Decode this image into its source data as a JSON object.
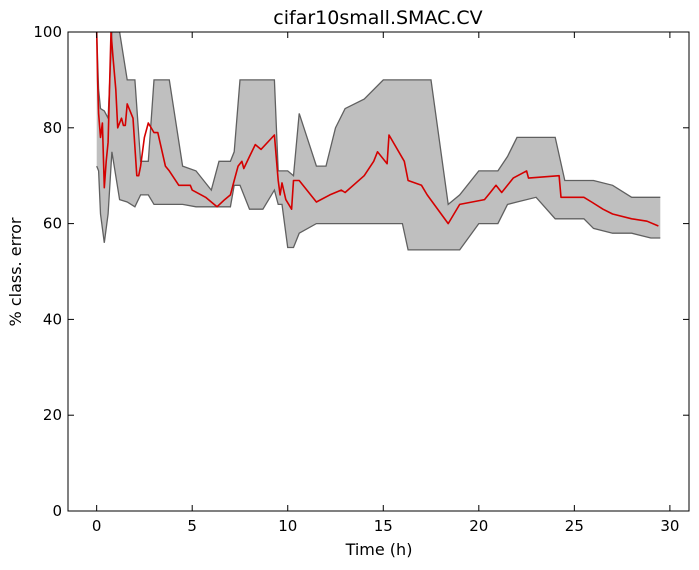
{
  "chart_data": {
    "type": "line",
    "title": "cifar10small.SMAC.CV",
    "xlabel": "Time (h)",
    "ylabel": "% class. error",
    "xlim": [
      -1.5,
      31
    ],
    "ylim": [
      0,
      100
    ],
    "x_ticks": [
      0,
      5,
      10,
      15,
      20,
      25,
      30
    ],
    "y_ticks": [
      0,
      20,
      40,
      60,
      80,
      100
    ],
    "grid": false,
    "colors": {
      "line": "#d40000",
      "band_fill": "#bfbfbf",
      "band_edge": "#606060"
    },
    "series": [
      {
        "x": [
          0.0,
          0.05,
          0.1,
          0.2,
          0.3,
          0.4,
          0.5,
          0.6,
          0.75,
          0.85,
          1.0,
          1.1,
          1.3,
          1.4,
          1.5,
          1.6,
          1.9,
          2.1,
          2.2,
          2.3,
          2.5,
          2.7,
          3.0,
          3.2,
          3.6,
          3.8,
          4.3,
          4.9,
          5.0,
          5.7,
          6.3,
          6.7,
          7.0,
          7.2,
          7.4,
          7.6,
          7.7,
          8.0,
          8.3,
          8.6,
          9.3,
          9.5,
          9.6,
          9.7,
          9.9,
          10.2,
          10.3,
          10.6,
          11.5,
          12.2,
          12.8,
          13.0,
          14.0,
          14.5,
          14.7,
          15.2,
          15.3,
          16.1,
          16.3,
          17.0,
          17.3,
          18.4,
          19.0,
          20.3,
          20.6,
          20.9,
          21.2,
          21.8,
          22.5,
          22.6,
          24.2,
          24.3,
          25.5,
          25.9,
          26.5,
          27.0,
          28.0,
          28.8,
          29.4
        ],
        "values": [
          100.0,
          90.0,
          83.0,
          78.0,
          81.0,
          67.5,
          73.0,
          77.0,
          100.0,
          95.0,
          88.0,
          80.0,
          82.0,
          80.5,
          80.5,
          85.0,
          82.0,
          70.0,
          70.0,
          72.0,
          78.0,
          81.0,
          79.0,
          79.0,
          72.0,
          71.0,
          68.0,
          68.0,
          67.0,
          65.5,
          63.5,
          65.0,
          66.0,
          69.0,
          72.0,
          73.0,
          71.5,
          74.0,
          76.5,
          75.5,
          78.5,
          69.0,
          66.0,
          68.5,
          65.0,
          63.0,
          69.0,
          69.0,
          64.5,
          66.0,
          67.0,
          66.5,
          70.0,
          73.0,
          75.0,
          72.5,
          78.5,
          73.0,
          69.0,
          68.0,
          66.0,
          60.0,
          64.0,
          65.0,
          66.5,
          68.0,
          66.5,
          69.5,
          71.0,
          69.5,
          70.0,
          65.5,
          65.5,
          64.5,
          63.0,
          62.0,
          61.0,
          60.5,
          59.5
        ]
      }
    ],
    "band": {
      "x": [
        0.0,
        0.1,
        0.2,
        0.4,
        0.6,
        0.8,
        1.2,
        1.6,
        2.0,
        2.3,
        2.7,
        3.0,
        3.8,
        4.5,
        5.2,
        6.0,
        6.4,
        7.0,
        7.2,
        7.5,
        8.0,
        8.7,
        9.3,
        9.5,
        9.7,
        10.0,
        10.3,
        10.6,
        11.5,
        12.0,
        12.5,
        13.0,
        14.0,
        15.0,
        16.0,
        16.3,
        17.5,
        18.4,
        19.0,
        20.0,
        20.5,
        21.0,
        21.5,
        22.0,
        23.0,
        24.0,
        24.5,
        25.5,
        26.0,
        27.0,
        28.0,
        29.0,
        29.5
      ],
      "upper": [
        100.0,
        88.0,
        84.0,
        83.5,
        82.0,
        100.0,
        100.0,
        90.0,
        90.0,
        73.0,
        73.0,
        90.0,
        90.0,
        72.0,
        71.0,
        67.0,
        73.0,
        73.0,
        75.0,
        90.0,
        90.0,
        90.0,
        90.0,
        71.0,
        71.0,
        71.0,
        70.0,
        83.0,
        72.0,
        72.0,
        80.0,
        84.0,
        86.0,
        90.0,
        90.0,
        90.0,
        90.0,
        64.0,
        66.0,
        71.0,
        71.0,
        71.0,
        74.0,
        78.0,
        78.0,
        78.0,
        69.0,
        69.0,
        69.0,
        68.0,
        65.5,
        65.5,
        65.5
      ],
      "lower": [
        72.0,
        71.0,
        62.0,
        56.0,
        62.0,
        75.0,
        65.0,
        64.5,
        63.5,
        66.0,
        66.0,
        64.0,
        64.0,
        64.0,
        63.5,
        63.5,
        63.5,
        63.5,
        68.0,
        68.0,
        63.0,
        63.0,
        67.0,
        64.0,
        64.0,
        55.0,
        55.0,
        58.0,
        60.0,
        60.0,
        60.0,
        60.0,
        60.0,
        60.0,
        60.0,
        54.5,
        54.5,
        54.5,
        54.5,
        60.0,
        60.0,
        60.0,
        64.0,
        64.5,
        65.5,
        61.0,
        61.0,
        61.0,
        59.0,
        58.0,
        58.0,
        57.0,
        57.0
      ]
    }
  }
}
